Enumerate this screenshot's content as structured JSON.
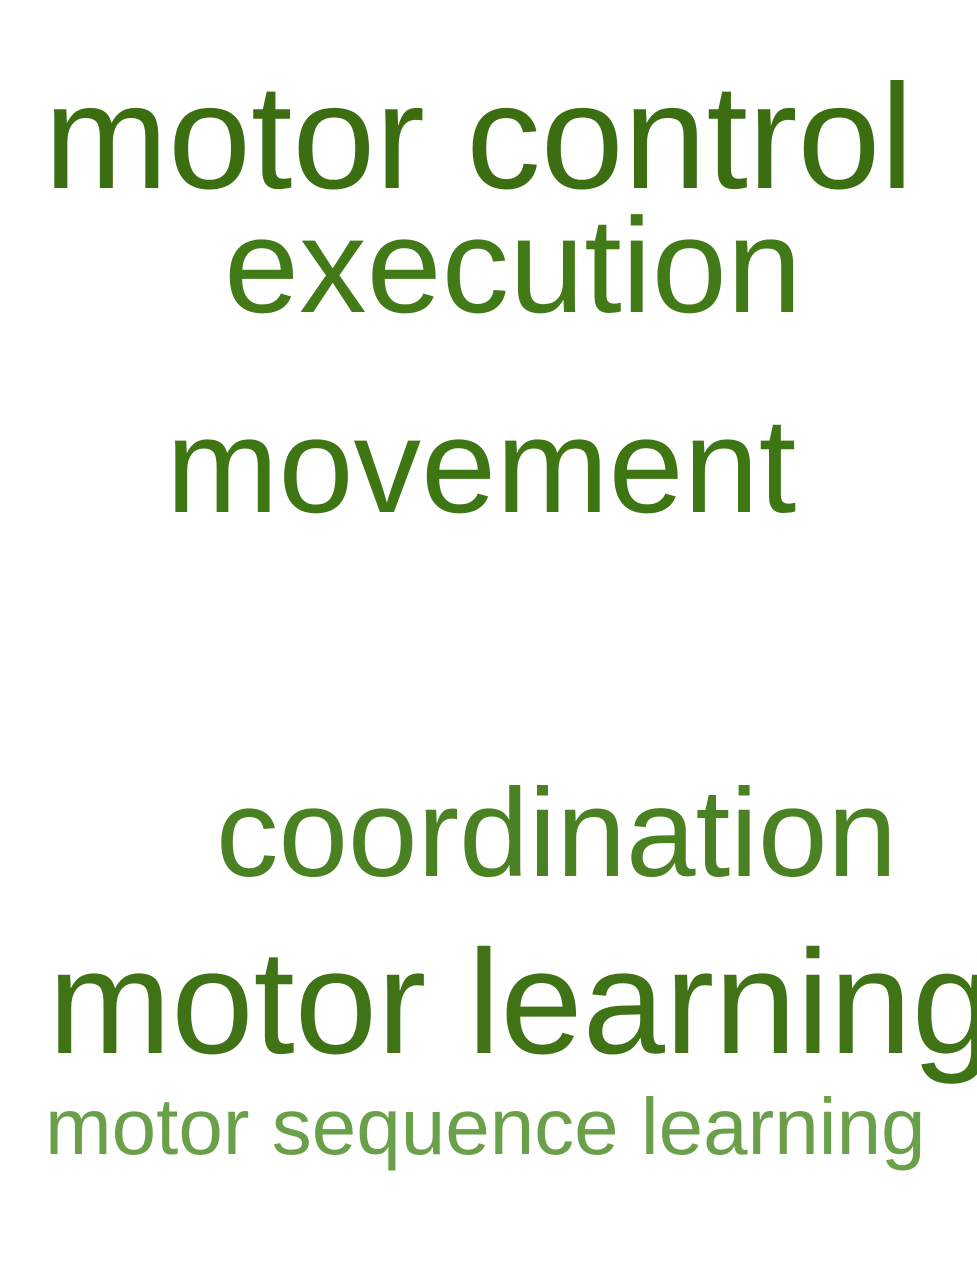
{
  "words": [
    {
      "text": "motor control",
      "color": "#3a6e10"
    },
    {
      "text": "execution",
      "color": "#427a18"
    },
    {
      "text": "movement",
      "color": "#3f7614"
    },
    {
      "text": "coordination",
      "color": "#4a8122"
    },
    {
      "text": "motor learning",
      "color": "#3f7316"
    },
    {
      "text": "motor sequence learning",
      "color": "#6ba04a"
    }
  ]
}
